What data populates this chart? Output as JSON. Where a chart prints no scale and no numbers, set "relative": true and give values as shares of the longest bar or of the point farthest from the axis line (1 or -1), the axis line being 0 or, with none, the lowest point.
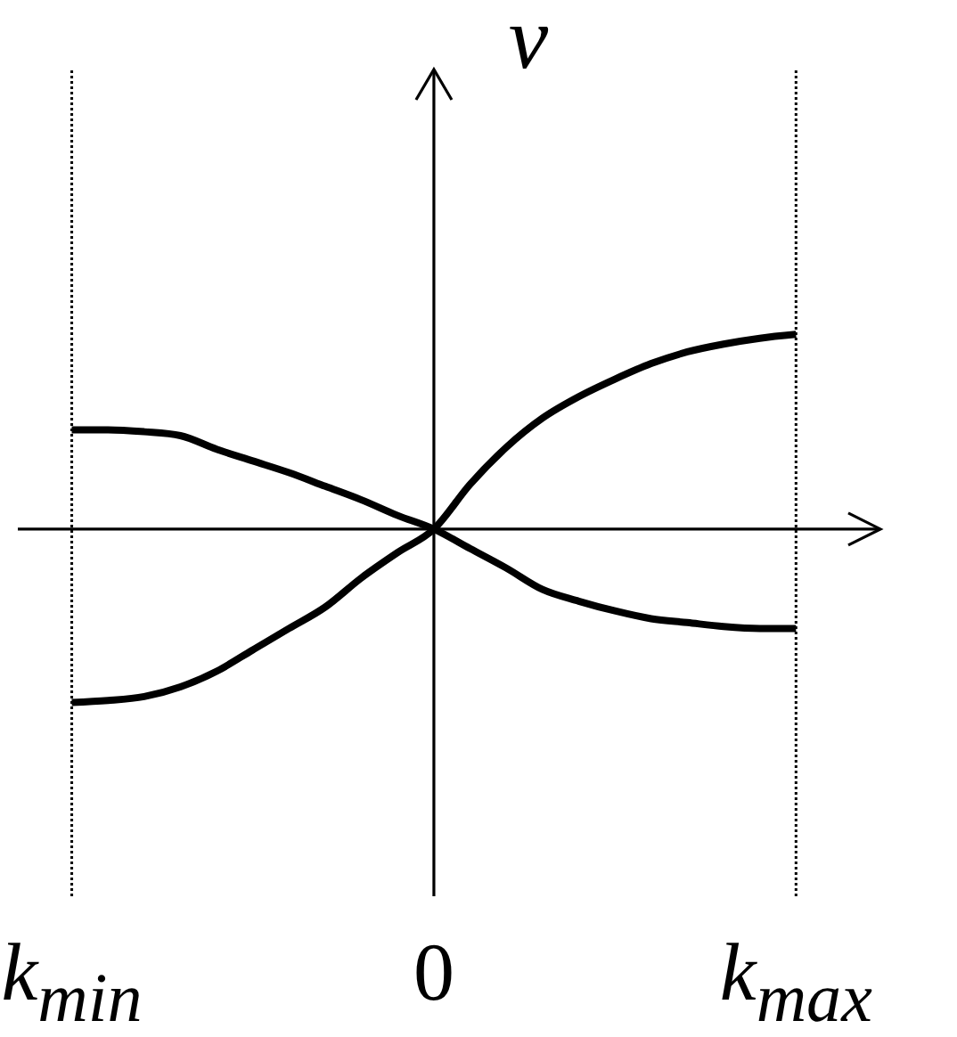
{
  "chart_data": {
    "type": "line",
    "ylabel": "v",
    "categories": [
      "k$_{min}$",
      null,
      null,
      null,
      null,
      null,
      null,
      null,
      null,
      null,
      "0",
      null,
      null,
      null,
      null,
      null,
      null,
      null,
      null,
      null,
      "k$_{max}$"
    ],
    "relative": true,
    "series": [
      {
        "color": "#000000",
        "values": [
          -0.89,
          -0.88,
          -0.86,
          -0.81,
          -0.73,
          -0.62,
          -0.51,
          -0.4,
          -0.25,
          -0.12,
          0,
          0.23,
          0.42,
          0.57,
          0.68,
          0.77,
          0.85,
          0.91,
          0.95,
          0.98,
          1
        ]
      },
      {
        "color": "#000000",
        "values": [
          0.51,
          0.51,
          0.5,
          0.48,
          0.41,
          0.35,
          0.29,
          0.22,
          0.15,
          0.07,
          0,
          -0.1,
          -0.2,
          -0.31,
          -0.37,
          -0.42,
          -0.46,
          -0.48,
          -0.5,
          -0.51,
          -0.51
        ]
      }
    ],
    "ref_lines": [
      {
        "axis": "x",
        "value": "k$_{min}$",
        "color": "#000000",
        "line_style": "dotted"
      },
      {
        "axis": "x",
        "value": "k$_{max}$",
        "color": "#000000",
        "line_style": "dotted"
      }
    ],
    "marker": "none",
    "line_style": "solid"
  }
}
